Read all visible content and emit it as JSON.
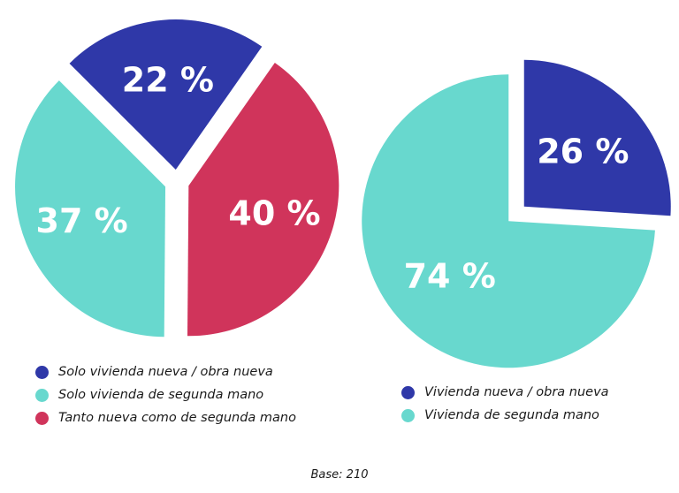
{
  "chart_data": [
    {
      "type": "pie",
      "start_angle_deg": -45,
      "slices": [
        {
          "label": "Solo vivienda nueva / obra nueva",
          "value": 22,
          "value_label": "22 %",
          "color": "#2f38a8"
        },
        {
          "label": "Tanto nueva como de segunda mano",
          "value": 40,
          "value_label": "40 %",
          "color": "#d0345b"
        },
        {
          "label": "Solo vivienda de segunda mano",
          "value": 37,
          "value_label": "37 %",
          "color": "#68d8ce"
        }
      ],
      "legend": [
        {
          "label": "Solo vivienda nueva / obra nueva",
          "color": "#2f38a8"
        },
        {
          "label": "Solo vivienda de segunda mano",
          "color": "#68d8ce"
        },
        {
          "label": "Tanto nueva como de segunda mano",
          "color": "#d0345b"
        }
      ],
      "legend_position": "bottom-left"
    },
    {
      "type": "pie",
      "start_angle_deg": 0,
      "slices": [
        {
          "label": "Vivienda nueva / obra nueva",
          "value": 26,
          "value_label": "26 %",
          "color": "#2f38a8"
        },
        {
          "label": "Vivienda de segunda mano",
          "value": 74,
          "value_label": "74 %",
          "color": "#68d8ce"
        }
      ],
      "legend": [
        {
          "label": "Vivienda nueva / obra nueva",
          "color": "#2f38a8"
        },
        {
          "label": "Vivienda de segunda mano",
          "color": "#68d8ce"
        }
      ],
      "legend_position": "bottom-right"
    }
  ],
  "footer": {
    "base_note": "Base: 210"
  }
}
